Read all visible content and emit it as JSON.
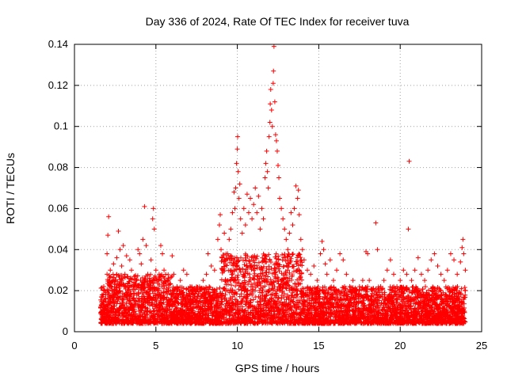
{
  "chart_data": {
    "type": "scatter",
    "title": "Day 336 of 2024, Rate Of TEC Index for receiver tuva",
    "xlabel": "GPS time / hours",
    "ylabel": "ROTI / TECUs",
    "xlim": [
      0,
      25
    ],
    "ylim": [
      0,
      0.14
    ],
    "x_ticks": [
      "0",
      "5",
      "10",
      "15",
      "20",
      "25"
    ],
    "y_ticks": [
      "0",
      "0.02",
      "0.04",
      "0.06",
      "0.08",
      "0.1",
      "0.12",
      "0.14"
    ],
    "grid": true,
    "marker": "+",
    "color": "#ff0000",
    "series": [
      {
        "name": "",
        "points": [
          [
            1.6,
            0.012
          ],
          [
            1.7,
            0.018
          ],
          [
            1.8,
            0.022
          ],
          [
            1.9,
            0.015
          ],
          [
            2.0,
            0.028
          ],
          [
            2.0,
            0.038
          ],
          [
            2.05,
            0.047
          ],
          [
            2.1,
            0.056
          ],
          [
            2.2,
            0.03
          ],
          [
            2.3,
            0.02
          ],
          [
            2.4,
            0.033
          ],
          [
            2.5,
            0.025
          ],
          [
            2.6,
            0.036
          ],
          [
            2.7,
            0.049
          ],
          [
            2.8,
            0.04
          ],
          [
            2.9,
            0.032
          ],
          [
            3.0,
            0.042
          ],
          [
            3.1,
            0.028
          ],
          [
            3.2,
            0.037
          ],
          [
            3.4,
            0.035
          ],
          [
            3.5,
            0.03
          ],
          [
            3.6,
            0.022
          ],
          [
            3.8,
            0.025
          ],
          [
            3.9,
            0.04
          ],
          [
            4.0,
            0.038
          ],
          [
            4.1,
            0.033
          ],
          [
            4.2,
            0.045
          ],
          [
            4.3,
            0.061
          ],
          [
            4.4,
            0.042
          ],
          [
            4.5,
            0.028
          ],
          [
            4.6,
            0.025
          ],
          [
            4.7,
            0.035
          ],
          [
            4.8,
            0.055
          ],
          [
            4.85,
            0.06
          ],
          [
            4.9,
            0.05
          ],
          [
            5.0,
            0.03
          ],
          [
            5.1,
            0.02
          ],
          [
            5.2,
            0.028
          ],
          [
            5.3,
            0.042
          ],
          [
            5.4,
            0.038
          ],
          [
            5.5,
            0.03
          ],
          [
            5.7,
            0.025
          ],
          [
            5.8,
            0.02
          ],
          [
            6.0,
            0.037
          ],
          [
            6.1,
            0.028
          ],
          [
            6.3,
            0.022
          ],
          [
            6.5,
            0.025
          ],
          [
            6.7,
            0.03
          ],
          [
            6.9,
            0.028
          ],
          [
            7.1,
            0.022
          ],
          [
            7.3,
            0.018
          ],
          [
            7.5,
            0.015
          ],
          [
            7.7,
            0.02
          ],
          [
            7.9,
            0.025
          ],
          [
            8.1,
            0.028
          ],
          [
            8.2,
            0.038
          ],
          [
            8.4,
            0.032
          ],
          [
            8.6,
            0.03
          ],
          [
            8.8,
            0.045
          ],
          [
            8.9,
            0.052
          ],
          [
            8.95,
            0.057
          ],
          [
            9.0,
            0.04
          ],
          [
            9.1,
            0.03
          ],
          [
            9.2,
            0.048
          ],
          [
            9.3,
            0.035
          ],
          [
            9.4,
            0.038
          ],
          [
            9.5,
            0.045
          ],
          [
            9.6,
            0.05
          ],
          [
            9.7,
            0.058
          ],
          [
            9.8,
            0.068
          ],
          [
            9.85,
            0.06
          ],
          [
            9.9,
            0.07
          ],
          [
            9.95,
            0.082
          ],
          [
            10.0,
            0.089
          ],
          [
            10.02,
            0.095
          ],
          [
            10.05,
            0.078
          ],
          [
            10.1,
            0.065
          ],
          [
            10.15,
            0.072
          ],
          [
            10.2,
            0.055
          ],
          [
            10.3,
            0.048
          ],
          [
            10.4,
            0.06
          ],
          [
            10.5,
            0.052
          ],
          [
            10.6,
            0.067
          ],
          [
            10.7,
            0.058
          ],
          [
            10.8,
            0.065
          ],
          [
            10.9,
            0.055
          ],
          [
            11.0,
            0.062
          ],
          [
            11.1,
            0.07
          ],
          [
            11.2,
            0.058
          ],
          [
            11.3,
            0.066
          ],
          [
            11.4,
            0.05
          ],
          [
            11.5,
            0.06
          ],
          [
            11.6,
            0.055
          ],
          [
            11.7,
            0.075
          ],
          [
            11.75,
            0.082
          ],
          [
            11.8,
            0.088
          ],
          [
            11.85,
            0.078
          ],
          [
            11.9,
            0.07
          ],
          [
            11.95,
            0.095
          ],
          [
            12.0,
            0.102
          ],
          [
            12.02,
            0.111
          ],
          [
            12.05,
            0.118
          ],
          [
            12.1,
            0.108
          ],
          [
            12.15,
            0.1
          ],
          [
            12.2,
            0.121
          ],
          [
            12.22,
            0.127
          ],
          [
            12.25,
            0.139
          ],
          [
            12.3,
            0.112
          ],
          [
            12.35,
            0.096
          ],
          [
            12.4,
            0.093
          ],
          [
            12.45,
            0.088
          ],
          [
            12.5,
            0.081
          ],
          [
            12.55,
            0.075
          ],
          [
            12.6,
            0.065
          ],
          [
            12.7,
            0.06
          ],
          [
            12.8,
            0.055
          ],
          [
            12.9,
            0.05
          ],
          [
            13.0,
            0.045
          ],
          [
            13.1,
            0.04
          ],
          [
            13.2,
            0.048
          ],
          [
            13.3,
            0.058
          ],
          [
            13.4,
            0.052
          ],
          [
            13.5,
            0.06
          ],
          [
            13.6,
            0.071
          ],
          [
            13.7,
            0.065
          ],
          [
            13.75,
            0.069
          ],
          [
            13.8,
            0.057
          ],
          [
            13.9,
            0.045
          ],
          [
            14.0,
            0.04
          ],
          [
            14.1,
            0.035
          ],
          [
            14.3,
            0.03
          ],
          [
            14.5,
            0.028
          ],
          [
            14.7,
            0.032
          ],
          [
            14.9,
            0.025
          ],
          [
            15.1,
            0.038
          ],
          [
            15.2,
            0.044
          ],
          [
            15.3,
            0.04
          ],
          [
            15.4,
            0.033
          ],
          [
            15.5,
            0.028
          ],
          [
            15.7,
            0.035
          ],
          [
            15.9,
            0.025
          ],
          [
            16.1,
            0.03
          ],
          [
            16.3,
            0.038
          ],
          [
            16.5,
            0.035
          ],
          [
            16.7,
            0.028
          ],
          [
            16.9,
            0.022
          ],
          [
            17.1,
            0.025
          ],
          [
            17.3,
            0.02
          ],
          [
            17.5,
            0.022
          ],
          [
            17.7,
            0.025
          ],
          [
            17.9,
            0.039
          ],
          [
            18.0,
            0.038
          ],
          [
            18.1,
            0.025
          ],
          [
            18.3,
            0.02
          ],
          [
            18.5,
            0.053
          ],
          [
            18.6,
            0.04
          ],
          [
            18.8,
            0.022
          ],
          [
            19.0,
            0.025
          ],
          [
            19.2,
            0.03
          ],
          [
            19.4,
            0.035
          ],
          [
            19.6,
            0.028
          ],
          [
            19.8,
            0.022
          ],
          [
            20.0,
            0.025
          ],
          [
            20.2,
            0.03
          ],
          [
            20.4,
            0.028
          ],
          [
            20.5,
            0.05
          ],
          [
            20.55,
            0.083
          ],
          [
            20.7,
            0.025
          ],
          [
            20.9,
            0.03
          ],
          [
            21.1,
            0.036
          ],
          [
            21.3,
            0.028
          ],
          [
            21.5,
            0.025
          ],
          [
            21.7,
            0.03
          ],
          [
            21.9,
            0.035
          ],
          [
            22.1,
            0.038
          ],
          [
            22.3,
            0.032
          ],
          [
            22.5,
            0.028
          ],
          [
            22.7,
            0.025
          ],
          [
            22.9,
            0.03
          ],
          [
            23.1,
            0.038
          ],
          [
            23.3,
            0.035
          ],
          [
            23.5,
            0.028
          ],
          [
            23.7,
            0.034
          ],
          [
            23.8,
            0.041
          ],
          [
            23.85,
            0.045
          ],
          [
            23.9,
            0.038
          ],
          [
            24.0,
            0.03
          ],
          [
            24.0,
            0.02
          ]
        ]
      }
    ]
  }
}
